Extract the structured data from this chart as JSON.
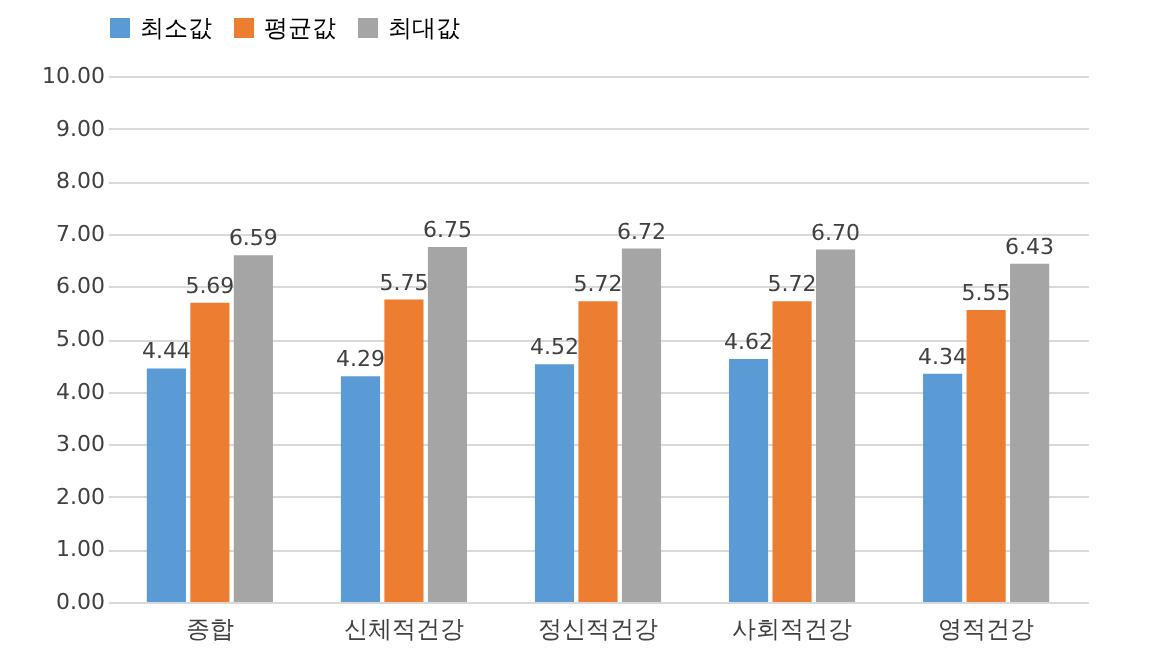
{
  "chart_data": {
    "type": "bar",
    "categories": [
      "종합",
      "신체적건강",
      "정신적건강",
      "사회적건강",
      "영적건강"
    ],
    "series": [
      {
        "name": "최소값",
        "color": "#5b9bd5",
        "values": [
          4.44,
          4.29,
          4.52,
          4.62,
          4.34
        ],
        "value_labels": [
          "4.44",
          "4.29",
          "4.52",
          "4.62",
          "4.34"
        ]
      },
      {
        "name": "평균값",
        "color": "#ed7d31",
        "values": [
          5.69,
          5.75,
          5.72,
          5.72,
          5.55
        ],
        "value_labels": [
          "5.69",
          "5.75",
          "5.72",
          "5.72",
          "5.55"
        ]
      },
      {
        "name": "최대값",
        "color": "#a5a5a5",
        "values": [
          6.59,
          6.75,
          6.72,
          6.7,
          6.43
        ],
        "value_labels": [
          "6.59",
          "6.75",
          "6.72",
          "6.70",
          "6.43"
        ]
      }
    ],
    "ylim": [
      0,
      10
    ],
    "yticks": [
      {
        "value": 0,
        "label": "0.00"
      },
      {
        "value": 1,
        "label": "1.00"
      },
      {
        "value": 2,
        "label": "2.00"
      },
      {
        "value": 3,
        "label": "3.00"
      },
      {
        "value": 4,
        "label": "4.00"
      },
      {
        "value": 5,
        "label": "5.00"
      },
      {
        "value": 6,
        "label": "6.00"
      },
      {
        "value": 7,
        "label": "7.00"
      },
      {
        "value": 8,
        "label": "8.00"
      },
      {
        "value": 9,
        "label": "9.00"
      },
      {
        "value": 10,
        "label": "10.00"
      }
    ],
    "grid": "y",
    "legend": "top"
  }
}
